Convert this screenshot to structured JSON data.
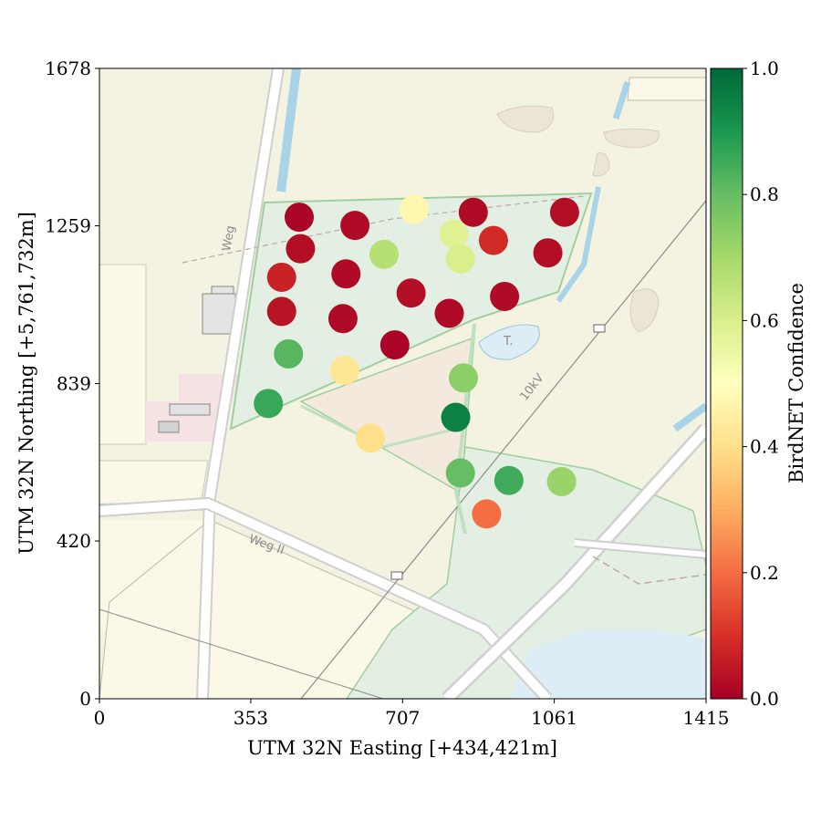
{
  "chart_data": {
    "type": "scatter",
    "xlabel": "UTM 32N Easting [+434,421m]",
    "ylabel": "UTM 32N Northing [+5,761,732m]",
    "xlim": [
      0,
      1415
    ],
    "ylim": [
      0,
      1678
    ],
    "xticks": [
      0,
      353,
      707,
      1061,
      1415
    ],
    "yticks": [
      0,
      420,
      839,
      1259,
      1678
    ],
    "xtick_labels": [
      "0",
      "353",
      "707",
      "1061",
      "1415"
    ],
    "ytick_labels": [
      "0",
      "420",
      "839",
      "1259",
      "1678"
    ],
    "colorbar": {
      "label": "BirdNET Confidence",
      "range": [
        0.0,
        1.0
      ],
      "ticks": [
        0.0,
        0.2,
        0.4,
        0.6,
        0.8,
        1.0
      ],
      "tick_labels": [
        "0.0",
        "0.2",
        "0.4",
        "0.6",
        "0.8",
        "1.0"
      ],
      "colormap": "RdYlGn",
      "colors": [
        "#a50026",
        "#d73027",
        "#f46d43",
        "#fdae61",
        "#fee08b",
        "#ffffbf",
        "#d9ef8b",
        "#a6d96a",
        "#66bd63",
        "#1a9850",
        "#006837"
      ]
    },
    "basemap": {
      "labels": [
        "Weg",
        "Weg II",
        "10kV",
        "T."
      ]
    },
    "points": [
      {
        "x": 466,
        "y": 1282,
        "c": 0.01
      },
      {
        "x": 596,
        "y": 1260,
        "c": 0.02
      },
      {
        "x": 734,
        "y": 1303,
        "c": 0.47
      },
      {
        "x": 872,
        "y": 1295,
        "c": 0.02
      },
      {
        "x": 1085,
        "y": 1295,
        "c": 0.03
      },
      {
        "x": 469,
        "y": 1198,
        "c": 0.03
      },
      {
        "x": 664,
        "y": 1183,
        "c": 0.67
      },
      {
        "x": 827,
        "y": 1237,
        "c": 0.58
      },
      {
        "x": 919,
        "y": 1220,
        "c": 0.09
      },
      {
        "x": 1046,
        "y": 1187,
        "c": 0.03
      },
      {
        "x": 425,
        "y": 1122,
        "c": 0.07
      },
      {
        "x": 575,
        "y": 1131,
        "c": 0.02
      },
      {
        "x": 842,
        "y": 1171,
        "c": 0.6
      },
      {
        "x": 425,
        "y": 1031,
        "c": 0.04
      },
      {
        "x": 727,
        "y": 1080,
        "c": 0.03
      },
      {
        "x": 945,
        "y": 1071,
        "c": 0.02
      },
      {
        "x": 568,
        "y": 1012,
        "c": 0.02
      },
      {
        "x": 816,
        "y": 1026,
        "c": 0.02
      },
      {
        "x": 441,
        "y": 918,
        "c": 0.82
      },
      {
        "x": 689,
        "y": 942,
        "c": 0.01
      },
      {
        "x": 572,
        "y": 874,
        "c": 0.42
      },
      {
        "x": 849,
        "y": 854,
        "c": 0.74
      },
      {
        "x": 394,
        "y": 786,
        "c": 0.86
      },
      {
        "x": 831,
        "y": 749,
        "c": 0.95
      },
      {
        "x": 632,
        "y": 694,
        "c": 0.4
      },
      {
        "x": 842,
        "y": 601,
        "c": 0.8
      },
      {
        "x": 955,
        "y": 581,
        "c": 0.85
      },
      {
        "x": 1078,
        "y": 578,
        "c": 0.72
      },
      {
        "x": 903,
        "y": 492,
        "c": 0.2
      }
    ]
  }
}
